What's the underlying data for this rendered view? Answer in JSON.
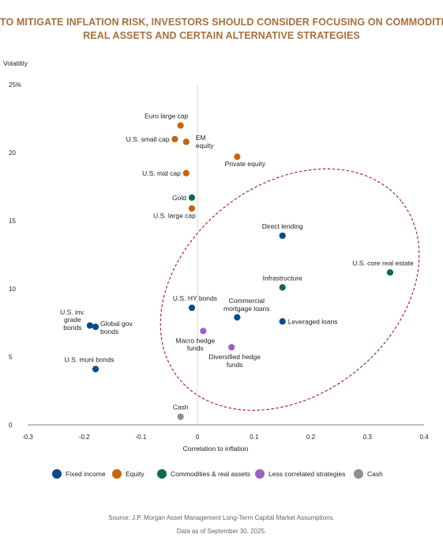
{
  "title_lines": [
    "TO MITIGATE INFLATION RISK, INVESTORS SHOULD CONSIDER FOCUSING ON COMMODITIES,",
    "REAL ASSETS AND CERTAIN ALTERNATIVE STRATEGIES"
  ],
  "source_lines": [
    "Source: J.P. Morgan Asset Management Long-Term Capital Market Assumptions.",
    "Data as of September 30, 2025."
  ],
  "colors": {
    "title": "#a86f3c",
    "highlight_ellipse": "#a3143a"
  },
  "chart_data": {
    "type": "scatter",
    "ylabel": "Volatility",
    "xlabel": "Correlation to inflation",
    "xlim": [
      -0.3,
      0.4
    ],
    "ylim": [
      0,
      25
    ],
    "x_ticks": [
      -0.3,
      -0.2,
      -0.1,
      0,
      0.1,
      0.2,
      0.3,
      0.4
    ],
    "x_tick_labels": [
      "-0.3",
      "-0.2",
      "-0.1",
      "0",
      "0.1",
      "0.2",
      "0.3",
      "0.4"
    ],
    "y_ticks": [
      0,
      5,
      10,
      15,
      20,
      25
    ],
    "y_tick_labels": [
      "0",
      "5",
      "10",
      "15",
      "20",
      "25%"
    ],
    "grid": false,
    "legend_position": "bottom",
    "series": [
      {
        "name": "Fixed income",
        "color": "#0b4a8b",
        "points": [
          {
            "label": "Direct lending",
            "x": 0.15,
            "y": 13.9
          },
          {
            "label": "U.S. HY bonds",
            "x": -0.01,
            "y": 8.6
          },
          {
            "label": "Commercial\nmortgage loans",
            "x": 0.07,
            "y": 7.9
          },
          {
            "label": "Leveraged loans",
            "x": 0.15,
            "y": 7.6
          },
          {
            "label": "U.S. inv.\ngrade\nbonds",
            "x": -0.19,
            "y": 7.3
          },
          {
            "label": "Global gov.\nbonds",
            "x": -0.18,
            "y": 7.2
          },
          {
            "label": "U.S. muni bonds",
            "x": -0.18,
            "y": 4.1
          }
        ]
      },
      {
        "name": "Equity",
        "color": "#c8640f",
        "points": [
          {
            "label": "Euro large cap",
            "x": -0.03,
            "y": 22.0
          },
          {
            "label": "U.S. small cap",
            "x": -0.04,
            "y": 21.0
          },
          {
            "label": "EM\nequity",
            "x": -0.02,
            "y": 20.8
          },
          {
            "label": "Private equity",
            "x": 0.07,
            "y": 19.7
          },
          {
            "label": "U.S. mid cap",
            "x": -0.02,
            "y": 18.5
          },
          {
            "label": "U.S. large cap",
            "x": -0.01,
            "y": 15.9
          }
        ]
      },
      {
        "name": "Commodities & real assets",
        "color": "#0d6b4f",
        "points": [
          {
            "label": "Gold",
            "x": -0.01,
            "y": 16.7
          },
          {
            "label": "U.S. core real estate",
            "x": 0.34,
            "y": 11.2
          },
          {
            "label": "Infrastructure",
            "x": 0.15,
            "y": 10.1
          }
        ]
      },
      {
        "name": "Less correlated strategies",
        "color": "#9a62c4",
        "points": [
          {
            "label": "Macro hedge\nfunds",
            "x": 0.01,
            "y": 6.9
          },
          {
            "label": "Diversified hedge\nfunds",
            "x": 0.06,
            "y": 5.7
          }
        ]
      },
      {
        "name": "Cash",
        "color": "#8f8f8f",
        "points": [
          {
            "label": "Cash",
            "x": -0.03,
            "y": 0.6
          }
        ]
      }
    ]
  }
}
